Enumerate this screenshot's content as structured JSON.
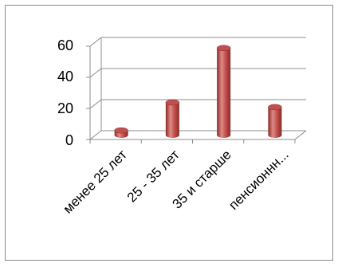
{
  "chart_data": {
    "type": "bar",
    "categories": [
      "менее 25 лет",
      "25 - 35 лет",
      "35 и старше",
      "пенсионнн..."
    ],
    "values": [
      3,
      21,
      56,
      18
    ],
    "title": "",
    "xlabel": "",
    "ylabel": "",
    "ylim": [
      0,
      60
    ],
    "yticks": [
      "0",
      "20",
      "40",
      "60"
    ],
    "grid": true,
    "legend": "none",
    "style": "3d-cylinder",
    "colors": {
      "bar": "#c0504d",
      "bar_dark": "#8b2a27",
      "bar_light": "#e08a86",
      "grid": "#8c8c8c"
    }
  }
}
